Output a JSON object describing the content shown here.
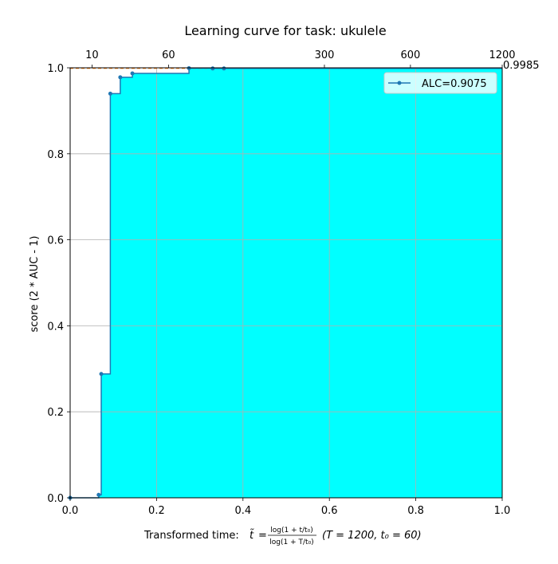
{
  "chart_data": {
    "type": "line",
    "title": "Learning curve for task: ukulele",
    "xlabel_prefix": "Transformed time: ",
    "xlabel_t": "t̃",
    "xlabel_frac_num": "log(1 + t/t₀)",
    "xlabel_frac_den": "log(1 + T/t₀)",
    "xlabel_params": "(T = 1200,  t₀ = 60)",
    "ylabel": "score (2 * AUC - 1)",
    "xlim": [
      0,
      1
    ],
    "ylim": [
      0,
      1
    ],
    "x_ticks": [
      "0.0",
      "0.2",
      "0.4",
      "0.6",
      "0.8",
      "1.0"
    ],
    "y_ticks": [
      "0.0",
      "0.2",
      "0.4",
      "0.6",
      "0.8",
      "1.0"
    ],
    "top_axis_ticks": [
      "10",
      "60",
      "300",
      "600",
      "1200"
    ],
    "top_axis_values": [
      10,
      60,
      300,
      600,
      1200
    ],
    "T": 1200,
    "t0": 60,
    "grid": true,
    "legend_position": "top-right",
    "series": [
      {
        "name": "ALC=0.9075",
        "color": "#1f77b4",
        "fill_color": "#00ffff",
        "step": true,
        "x": [
          0.0,
          0.066,
          0.072,
          0.093,
          0.116,
          0.144,
          0.275,
          0.33,
          0.356,
          1.0
        ],
        "y": [
          0.0,
          0.007,
          0.288,
          0.94,
          0.978,
          0.987,
          0.999,
          0.9985,
          0.9985,
          0.9985
        ]
      }
    ],
    "final_value_label": "0.9985",
    "final_value": 0.9985
  }
}
